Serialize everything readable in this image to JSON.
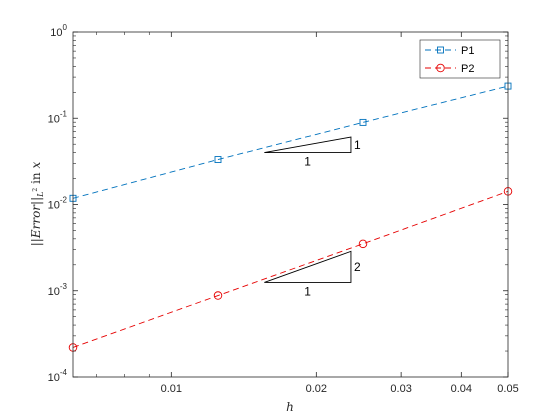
{
  "chart_data": {
    "type": "line",
    "xlabel": "h",
    "ylabel": "||Error||_{L^2} in x",
    "x_scale": "log",
    "y_scale": "log",
    "xlim": [
      0.00625,
      0.05
    ],
    "ylim": [
      0.0001,
      1
    ],
    "x_ticks": [
      {
        "value": 0.01,
        "label": "0.01"
      },
      {
        "value": 0.02,
        "label": "0.02"
      },
      {
        "value": 0.03,
        "label": "0.03"
      },
      {
        "value": 0.04,
        "label": "0.04"
      },
      {
        "value": 0.05,
        "label": "0.05"
      }
    ],
    "y_ticks": [
      {
        "value": 0.0001,
        "base": "10",
        "exp": "-4"
      },
      {
        "value": 0.001,
        "base": "10",
        "exp": "-3"
      },
      {
        "value": 0.01,
        "base": "10",
        "exp": "-2"
      },
      {
        "value": 0.1,
        "base": "10",
        "exp": "-1"
      },
      {
        "value": 1,
        "base": "10",
        "exp": "0"
      }
    ],
    "grid": false,
    "legend_position": "top-right",
    "series": [
      {
        "name": "P1",
        "color": "#0072BD",
        "marker": "square",
        "line_style": "dashed",
        "x": [
          0.00625,
          0.0125,
          0.025,
          0.05
        ],
        "y": [
          0.0118,
          0.0332,
          0.0895,
          0.236
        ]
      },
      {
        "name": "P2",
        "color": "#E60000",
        "marker": "circle",
        "line_style": "dashed",
        "x": [
          0.00625,
          0.0125,
          0.025,
          0.05
        ],
        "y": [
          0.00022,
          0.00088,
          0.0035,
          0.0142
        ]
      }
    ],
    "slope_triangles": [
      {
        "x_start": 0.0156,
        "x_end": 0.0236,
        "y_base": 0.04,
        "slope": 1,
        "run_label": "1",
        "rise_label": "1"
      },
      {
        "x_start": 0.0156,
        "x_end": 0.0236,
        "y_base": 0.00125,
        "slope": 2,
        "run_label": "1",
        "rise_label": "2"
      }
    ]
  }
}
